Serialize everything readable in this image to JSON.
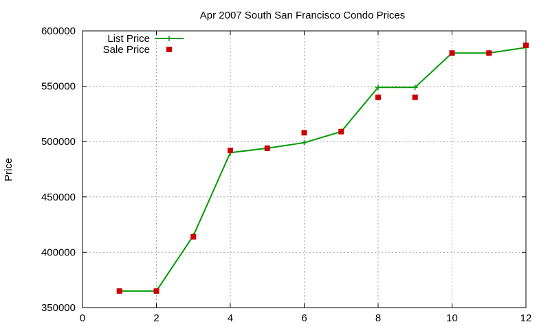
{
  "chart_data": {
    "type": "line",
    "title": "Apr 2007 South San Francisco Condo Prices",
    "xlabel": "",
    "ylabel": "Price",
    "xlim": [
      0,
      12
    ],
    "ylim": [
      350000,
      600000
    ],
    "x_ticks": [
      0,
      2,
      4,
      6,
      8,
      10,
      12
    ],
    "y_ticks": [
      350000,
      400000,
      450000,
      500000,
      550000,
      600000
    ],
    "grid": true,
    "legend_position": "top-left",
    "series": [
      {
        "name": "List Price",
        "style": "line+cross",
        "color": "#009900",
        "x": [
          1,
          2,
          3,
          4,
          5,
          6,
          7,
          8,
          9,
          10,
          11,
          12
        ],
        "values": [
          365000,
          365000,
          415000,
          490000,
          494000,
          499000,
          509000,
          549000,
          549000,
          580000,
          580000,
          585000
        ]
      },
      {
        "name": "Sale Price",
        "style": "square",
        "color": "#cc0000",
        "x": [
          1,
          2,
          3,
          4,
          5,
          6,
          7,
          8,
          9,
          10,
          11,
          12
        ],
        "values": [
          365000,
          365000,
          414000,
          492000,
          494000,
          508000,
          509000,
          540000,
          540000,
          580000,
          580000,
          587000
        ]
      }
    ]
  }
}
